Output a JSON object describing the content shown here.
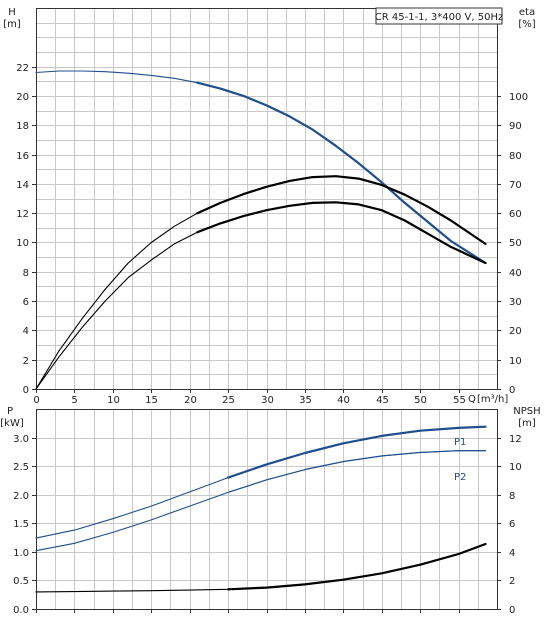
{
  "chart_data": [
    {
      "type": "line",
      "title": "CR 45-1-1, 3*400 V, 50Hz",
      "ylabel": "H",
      "ylabel_unit": "[m]",
      "y2label": "eta",
      "y2label_unit": "[%]",
      "xlabel": "Q",
      "xlabel_unit": "[m³/h]",
      "xlim": [
        0,
        60
      ],
      "ylim": [
        0,
        26
      ],
      "y2lim": [
        0,
        130
      ],
      "xticks": [
        0,
        5,
        10,
        15,
        20,
        25,
        30,
        35,
        40,
        45,
        50,
        55
      ],
      "yticks": [
        0,
        2,
        4,
        6,
        8,
        10,
        12,
        14,
        16,
        18,
        20,
        22
      ],
      "y2ticks": [
        0,
        10,
        20,
        30,
        40,
        50,
        60,
        70,
        80,
        90,
        100
      ],
      "grid": true,
      "series": [
        {
          "axis": "left",
          "color": "#1f4e8c",
          "x": [
            0,
            3,
            6,
            9,
            12,
            15,
            18,
            21,
            24,
            27,
            30,
            33,
            36,
            39,
            42,
            45,
            48,
            51,
            54,
            58.5
          ],
          "values": [
            21.6,
            21.7,
            21.7,
            21.65,
            21.55,
            21.4,
            21.2,
            20.9,
            20.5,
            20.0,
            19.35,
            18.6,
            17.7,
            16.6,
            15.4,
            14.1,
            12.7,
            11.4,
            10.1,
            8.6
          ]
        },
        {
          "axis": "right",
          "color": "#000000",
          "x": [
            0,
            3,
            6,
            9,
            12,
            15,
            18,
            21,
            24,
            27,
            30,
            33,
            36,
            39,
            42,
            45,
            48,
            51,
            54,
            58.5
          ],
          "values": [
            0,
            11,
            21,
            30,
            38,
            44,
            49.5,
            53.5,
            56.5,
            59,
            61,
            62.5,
            63.5,
            63.7,
            63,
            61,
            57.5,
            53,
            48.5,
            43
          ]
        },
        {
          "axis": "right",
          "color": "#000000",
          "x": [
            0,
            3,
            6,
            9,
            12,
            15,
            18,
            21,
            24,
            27,
            30,
            33,
            36,
            39,
            42,
            45,
            48,
            51,
            54,
            58.5
          ],
          "values": [
            0,
            13,
            24,
            34,
            43,
            50,
            55.5,
            60,
            63.5,
            66.5,
            69,
            71,
            72.3,
            72.6,
            71.8,
            69.6,
            66.3,
            62.2,
            57.5,
            49.5
          ]
        }
      ]
    },
    {
      "type": "line",
      "ylabel": "P",
      "ylabel_unit": "[kW]",
      "y2label": "NPSH",
      "y2label_unit": "[m]",
      "xlim": [
        0,
        60
      ],
      "ylim": [
        0,
        3.5
      ],
      "y2lim": [
        0,
        14
      ],
      "yticks": [
        0,
        0.5,
        1.0,
        1.5,
        2.0,
        2.5,
        3.0
      ],
      "ytick_labels": [
        "0.0",
        "0.5",
        "1.0",
        "1.5",
        "2.0",
        "2.5",
        "3.0"
      ],
      "y2ticks": [
        0,
        2,
        4,
        6,
        8,
        10,
        12
      ],
      "grid": true,
      "series": [
        {
          "name": "P1",
          "axis": "left",
          "color": "#1f4e8c",
          "x": [
            0,
            5,
            10,
            15,
            20,
            25,
            30,
            35,
            40,
            45,
            50,
            55,
            58.5
          ],
          "values": [
            1.24,
            1.38,
            1.58,
            1.8,
            2.05,
            2.3,
            2.53,
            2.73,
            2.9,
            3.03,
            3.12,
            3.17,
            3.19
          ]
        },
        {
          "name": "P2",
          "axis": "left",
          "color": "#1f4e8c",
          "x": [
            0,
            5,
            10,
            15,
            20,
            25,
            30,
            35,
            40,
            45,
            50,
            55,
            58.5
          ],
          "values": [
            1.02,
            1.15,
            1.34,
            1.56,
            1.8,
            2.04,
            2.26,
            2.44,
            2.58,
            2.68,
            2.74,
            2.77,
            2.77
          ]
        },
        {
          "axis": "right",
          "color": "#000000",
          "x": [
            0,
            5,
            10,
            15,
            20,
            25,
            30,
            35,
            40,
            45,
            50,
            55,
            58.5
          ],
          "values": [
            1.2,
            1.22,
            1.25,
            1.28,
            1.32,
            1.38,
            1.5,
            1.72,
            2.05,
            2.5,
            3.1,
            3.85,
            4.55
          ]
        }
      ]
    }
  ]
}
